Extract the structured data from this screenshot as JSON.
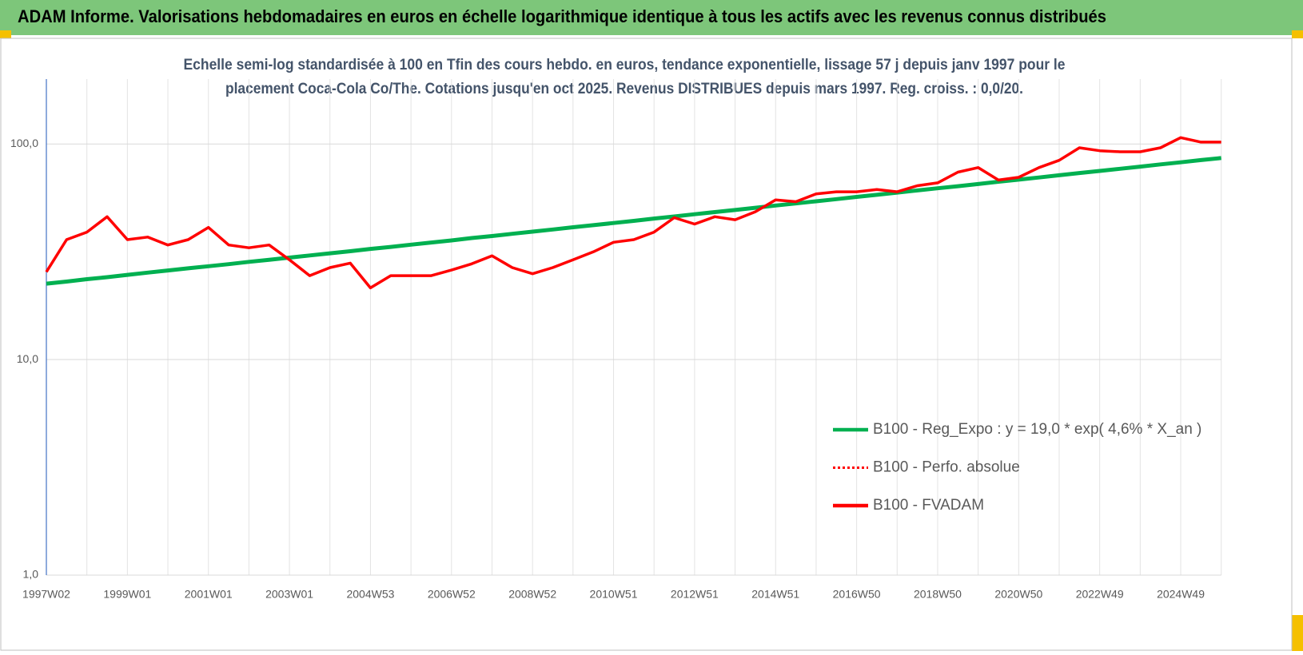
{
  "chart_data": {
    "type": "line",
    "title": "ADAM Informe. Valorisations hebdomadaires en euros en échelle logarithmique identique à tous les actifs avec les revenus connus distribués",
    "subtitle": [
      "Echelle semi-log standardisée à 100 en Tfin des cours hebdo. en euros, tendance exponentielle, lissage 57 j depuis janv 1997 pour le",
      "placement Coca-Cola Co/The. Cotations jusqu'en oct 2025. Revenus DISTRIBUES depuis mars 1997. Reg. croiss. : 0,0/20."
    ],
    "categories": [
      "1997W02",
      null,
      null,
      null,
      "1999W01",
      null,
      null,
      null,
      "2001W01",
      null,
      null,
      null,
      "2003W01",
      null,
      null,
      null,
      "2004W53",
      null,
      null,
      null,
      "2006W52",
      null,
      null,
      null,
      "2008W52",
      null,
      null,
      null,
      "2010W51",
      null,
      null,
      null,
      "2012W51",
      null,
      null,
      null,
      "2014W51",
      null,
      null,
      null,
      "2016W50",
      null,
      null,
      null,
      "2018W50",
      null,
      null,
      null,
      "2020W50",
      null,
      null,
      null,
      "2022W49",
      null,
      null,
      null,
      "2024W49",
      null,
      null
    ],
    "series": [
      {
        "name": "B100 - Reg_Expo : y = 19,0 * exp( 4,6% *  X_an )",
        "color": "#00b050",
        "dash": "solid",
        "values": [
          22.5,
          23.0,
          23.6,
          24.1,
          24.7,
          25.3,
          25.9,
          26.5,
          27.1,
          27.7,
          28.4,
          29.0,
          29.7,
          30.4,
          31.1,
          31.8,
          32.6,
          33.3,
          34.1,
          34.9,
          35.7,
          36.6,
          37.4,
          38.3,
          39.2,
          40.1,
          41.1,
          42.0,
          43.0,
          44.0,
          45.1,
          46.1,
          47.2,
          48.3,
          49.4,
          50.6,
          51.8,
          53.0,
          54.2,
          55.5,
          56.8,
          58.1,
          59.5,
          60.9,
          62.3,
          63.7,
          65.2,
          66.8,
          68.3,
          69.9,
          71.6,
          73.3,
          75.0,
          76.7,
          78.5,
          80.4,
          82.2,
          84.2,
          86.1
        ]
      },
      {
        "name": "B100 - Perfo. absolue",
        "color": "#ff0000",
        "dash": "dotted"
      },
      {
        "name": "B100 - FVADAM",
        "color": "#ff0000",
        "dash": "solid",
        "values": [
          25.5,
          36,
          39,
          46,
          36,
          37,
          34,
          36,
          41,
          34,
          33,
          34,
          29,
          24.5,
          26.7,
          28,
          21.5,
          24.5,
          24.5,
          24.5,
          26,
          27.8,
          30.3,
          26.7,
          25,
          26.7,
          29,
          31.6,
          35,
          36,
          39,
          45.5,
          42.5,
          46,
          44.5,
          48.5,
          55,
          54,
          58.7,
          60,
          60,
          61.5,
          60,
          64,
          66,
          74,
          77.7,
          68,
          70,
          77.7,
          84,
          96,
          93,
          92,
          92,
          96,
          107,
          102,
          102
        ]
      }
    ],
    "ylim": [
      1,
      200
    ],
    "log_y": true,
    "yticks": [
      {
        "value": 1,
        "label": "1,0"
      },
      {
        "value": 10,
        "label": "10,0"
      },
      {
        "value": 100,
        "label": "100,0"
      }
    ],
    "grid": true
  }
}
